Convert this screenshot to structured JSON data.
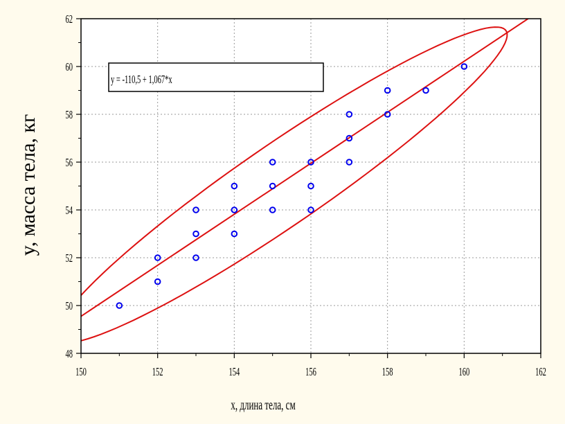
{
  "chart_data": {
    "type": "scatter",
    "title": "",
    "xlabel": "x, длина тела, см",
    "ylabel": "y, масса тела, кг",
    "xlim": [
      150,
      162
    ],
    "ylim": [
      48,
      62
    ],
    "xticks": [
      "150",
      "152",
      "154",
      "156",
      "158",
      "160",
      "162"
    ],
    "yticks": [
      "48",
      "50",
      "52",
      "54",
      "56",
      "58",
      "60",
      "62"
    ],
    "grid": true,
    "equation_label": "y = -110,5 + 1,067*x",
    "regression": {
      "intercept": -110.5,
      "slope": 1.067
    },
    "points": [
      {
        "x": 151,
        "y": 50
      },
      {
        "x": 152,
        "y": 51
      },
      {
        "x": 152,
        "y": 52
      },
      {
        "x": 153,
        "y": 52
      },
      {
        "x": 153,
        "y": 53
      },
      {
        "x": 153,
        "y": 54
      },
      {
        "x": 154,
        "y": 53
      },
      {
        "x": 154,
        "y": 54
      },
      {
        "x": 154,
        "y": 55
      },
      {
        "x": 155,
        "y": 54
      },
      {
        "x": 155,
        "y": 55
      },
      {
        "x": 155,
        "y": 56
      },
      {
        "x": 156,
        "y": 54
      },
      {
        "x": 156,
        "y": 55
      },
      {
        "x": 156,
        "y": 56
      },
      {
        "x": 157,
        "y": 56
      },
      {
        "x": 157,
        "y": 57
      },
      {
        "x": 157,
        "y": 58
      },
      {
        "x": 158,
        "y": 58
      },
      {
        "x": 158,
        "y": 59
      },
      {
        "x": 159,
        "y": 59
      },
      {
        "x": 160,
        "y": 60
      }
    ],
    "colors": {
      "points": "#0000ee",
      "regression_line": "#dd1111",
      "ellipse": "#dd1111",
      "grid": "#999999",
      "background": "#fffbed"
    }
  }
}
